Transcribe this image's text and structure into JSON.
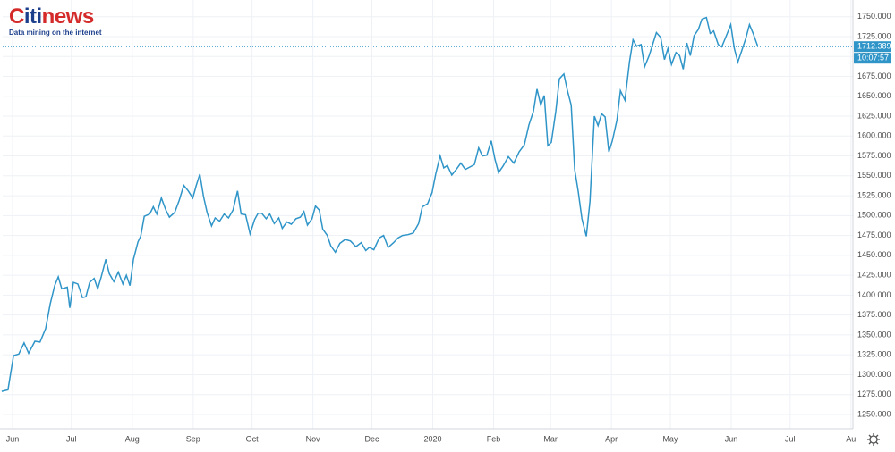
{
  "logo": {
    "parts": [
      "C",
      "iti",
      "news"
    ],
    "tagline": "Data mining on the internet"
  },
  "chart_data": {
    "type": "line",
    "color": "#2f95c8",
    "grid": true,
    "last_price": 1712.389,
    "countdown": "10:07:57",
    "xlim": [
      -5,
      428
    ],
    "ylim": [
      1232,
      1771
    ],
    "xticks": [
      {
        "value": 0,
        "label": "Jun"
      },
      {
        "value": 30,
        "label": "Jul"
      },
      {
        "value": 61,
        "label": "Aug"
      },
      {
        "value": 92,
        "label": "Sep"
      },
      {
        "value": 122,
        "label": "Oct"
      },
      {
        "value": 153,
        "label": "Nov"
      },
      {
        "value": 183,
        "label": "Dec"
      },
      {
        "value": 214,
        "label": "2020"
      },
      {
        "value": 245,
        "label": "Feb"
      },
      {
        "value": 274,
        "label": "Mar"
      },
      {
        "value": 305,
        "label": "Apr"
      },
      {
        "value": 335,
        "label": "May"
      },
      {
        "value": 366,
        "label": "Jun"
      },
      {
        "value": 396,
        "label": "Jul"
      },
      {
        "value": 427,
        "label": "Au"
      }
    ],
    "yticks": [
      {
        "value": 1250,
        "label": "1250.000"
      },
      {
        "value": 1275,
        "label": "1275.000"
      },
      {
        "value": 1300,
        "label": "1300.000"
      },
      {
        "value": 1325,
        "label": "1325.000"
      },
      {
        "value": 1350,
        "label": "1350.000"
      },
      {
        "value": 1375,
        "label": "1375.000"
      },
      {
        "value": 1400,
        "label": "1400.000"
      },
      {
        "value": 1425,
        "label": "1425.000"
      },
      {
        "value": 1450,
        "label": "1450.000"
      },
      {
        "value": 1475,
        "label": "1475.000"
      },
      {
        "value": 1500,
        "label": "1500.000"
      },
      {
        "value": 1525,
        "label": "1525.000"
      },
      {
        "value": 1550,
        "label": "1550.000"
      },
      {
        "value": 1575,
        "label": "1575.000"
      },
      {
        "value": 1600,
        "label": "1600.000"
      },
      {
        "value": 1625,
        "label": "1625.000"
      },
      {
        "value": 1650,
        "label": "1650.000"
      },
      {
        "value": 1675,
        "label": "1675.000"
      },
      {
        "value": 1700,
        "label": "1700.000"
      },
      {
        "value": 1725,
        "label": "1725.000"
      },
      {
        "value": 1750,
        "label": "1750.000"
      }
    ],
    "x": [
      -5.5,
      -2.3,
      0.5,
      3.2,
      5.9,
      8.2,
      11.4,
      14,
      16.9,
      19.2,
      21.5,
      23.3,
      25.1,
      27.9,
      29.2,
      31,
      33.3,
      35.6,
      37.4,
      39.3,
      41.6,
      43.4,
      45.2,
      47.5,
      49.3,
      51.6,
      53.9,
      56.2,
      58,
      59.8,
      61.6,
      63.9,
      65.3,
      67.1,
      69.9,
      71.7,
      73.5,
      75.8,
      78.1,
      79.9,
      82.6,
      84.9,
      87.2,
      89.5,
      91.8,
      93.6,
      95.4,
      97.3,
      99.1,
      101.4,
      103.2,
      105.5,
      107.8,
      110,
      112.3,
      114.6,
      116.4,
      118.7,
      121,
      123.3,
      125.1,
      126.9,
      129.2,
      131,
      133.3,
      135.6,
      137.4,
      139.7,
      142,
      144.3,
      146.6,
      148.4,
      150.2,
      152.5,
      154.3,
      156.2,
      158,
      160.3,
      162.1,
      164.4,
      166.7,
      169.4,
      172.1,
      174.9,
      177.6,
      179.9,
      181.7,
      184,
      186.8,
      189,
      191.3,
      194.1,
      196.3,
      198.6,
      201.4,
      204.1,
      206.8,
      208.7,
      211.4,
      213.7,
      215.5,
      217.8,
      219.6,
      221.5,
      223.7,
      226,
      228.3,
      230.6,
      232.9,
      235.2,
      237.4,
      239.3,
      241.6,
      243.8,
      245.7,
      247.5,
      249.8,
      252.5,
      255.3,
      258,
      260.7,
      263,
      265.3,
      267.1,
      269,
      270.8,
      272.6,
      274.4,
      276.7,
      278.5,
      280.8,
      282.6,
      284.5,
      286.3,
      288.1,
      290,
      292.2,
      294.1,
      296.3,
      298.2,
      300,
      301.8,
      303.7,
      305.5,
      307.8,
      309.6,
      311.9,
      314.2,
      316,
      317.8,
      320.1,
      321.9,
      324.2,
      326,
      327.9,
      330.1,
      332,
      333.8,
      335.6,
      337.9,
      339.7,
      341.6,
      343.4,
      345.2,
      347.1,
      349.3,
      351.1,
      353.4,
      355.3,
      357.1,
      359.4,
      361.2,
      363.5,
      365.8,
      367.6,
      369.4,
      371.2,
      373.5,
      375.3,
      377.2,
      379.5
    ],
    "values": [
      1279,
      1281,
      1324,
      1326,
      1340,
      1327,
      1342,
      1341,
      1358,
      1389,
      1412,
      1423,
      1408,
      1410,
      1384,
      1416,
      1414,
      1397,
      1398,
      1416,
      1421,
      1408,
      1423,
      1445,
      1427,
      1417,
      1429,
      1414,
      1425,
      1412,
      1445,
      1467,
      1474,
      1499,
      1502,
      1511,
      1502,
      1522,
      1507,
      1498,
      1504,
      1519,
      1538,
      1531,
      1522,
      1538,
      1552,
      1524,
      1504,
      1487,
      1497,
      1493,
      1502,
      1497,
      1507,
      1531,
      1502,
      1501,
      1477,
      1495,
      1503,
      1503,
      1496,
      1502,
      1490,
      1497,
      1484,
      1492,
      1489,
      1496,
      1498,
      1505,
      1488,
      1496,
      1512,
      1507,
      1483,
      1475,
      1462,
      1454,
      1465,
      1470,
      1468,
      1461,
      1466,
      1456,
      1460,
      1457,
      1472,
      1475,
      1460,
      1466,
      1472,
      1475,
      1476,
      1478,
      1490,
      1511,
      1515,
      1529,
      1552,
      1575,
      1560,
      1563,
      1551,
      1558,
      1566,
      1558,
      1561,
      1564,
      1585,
      1575,
      1576,
      1594,
      1571,
      1554,
      1562,
      1574,
      1566,
      1580,
      1589,
      1614,
      1631,
      1659,
      1639,
      1651,
      1588,
      1592,
      1631,
      1672,
      1678,
      1657,
      1639,
      1558,
      1530,
      1496,
      1474,
      1518,
      1625,
      1613,
      1628,
      1624,
      1580,
      1594,
      1620,
      1657,
      1645,
      1693,
      1721,
      1713,
      1715,
      1687,
      1701,
      1715,
      1730,
      1724,
      1696,
      1710,
      1690,
      1705,
      1701,
      1684,
      1717,
      1701,
      1726,
      1734,
      1747,
      1749,
      1729,
      1732,
      1715,
      1712,
      1726,
      1740,
      1710,
      1693,
      1706,
      1723,
      1740,
      1729,
      1713
    ]
  }
}
